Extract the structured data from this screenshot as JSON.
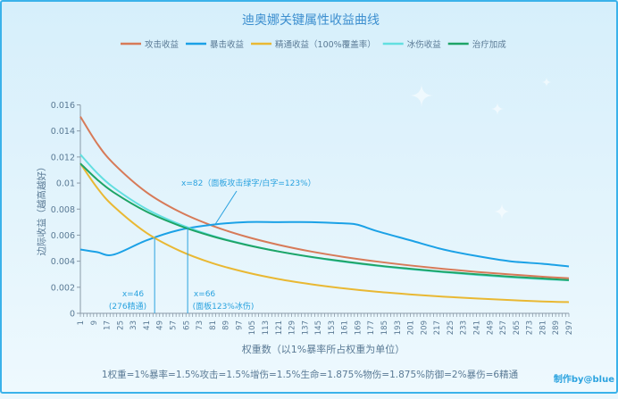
{
  "chart_data": {
    "type": "line",
    "title": "迪奥娜关键属性收益曲线",
    "xlabel": "权重数（以1%暴率所占权重为单位）",
    "ylabel": "边际收益（越高越好）",
    "xlim": [
      1,
      297
    ],
    "ylim": [
      0,
      0.016
    ],
    "yticks": [
      "0",
      "0.002",
      "0.004",
      "0.006",
      "0.008",
      "0.01",
      "0.012",
      "0.014",
      "0.016"
    ],
    "xtick_start": 1,
    "xtick_step": 8,
    "xtick_end": 297,
    "grid": false,
    "legend_position": "top",
    "series": [
      {
        "name": "攻击收益",
        "color": "#d77a58",
        "x": [
          1,
          11,
          21,
          41,
          61,
          81,
          101,
          121,
          141,
          161,
          181,
          201,
          221,
          241,
          261,
          281,
          297
        ],
        "y": [
          0.0151,
          0.01306,
          0.01151,
          0.0093,
          0.0078,
          0.00672,
          0.0059,
          0.00526,
          0.00474,
          0.00432,
          0.00397,
          0.00367,
          0.00341,
          0.00318,
          0.00299,
          0.00281,
          0.00269
        ]
      },
      {
        "name": "暴击收益",
        "color": "#1ba1e6",
        "x": [
          1,
          11,
          21,
          41,
          61,
          81,
          101,
          121,
          141,
          161,
          169,
          181,
          201,
          221,
          241,
          261,
          281,
          297
        ],
        "y": [
          0.0049,
          0.0047,
          0.0045,
          0.0056,
          0.0064,
          0.0068,
          0.007,
          0.007,
          0.007,
          0.0069,
          0.0068,
          0.0063,
          0.0056,
          0.0049,
          0.0044,
          0.004,
          0.0038,
          0.0036
        ]
      },
      {
        "name": "精通收益（100%覆盖率）",
        "color": "#e9b833",
        "x": [
          1,
          11,
          21,
          41,
          61,
          81,
          101,
          121,
          141,
          161,
          181,
          201,
          221,
          241,
          261,
          281,
          297
        ],
        "y": [
          0.0115,
          0.00966,
          0.00823,
          0.00618,
          0.00481,
          0.00385,
          0.00316,
          0.00263,
          0.00223,
          0.00191,
          0.00165,
          0.00145,
          0.00128,
          0.00114,
          0.00102,
          0.00091,
          0.00086
        ]
      },
      {
        "name": "冰伤收益",
        "color": "#62dfe0",
        "x": [
          1,
          11,
          21,
          41,
          61,
          81,
          101,
          121,
          141,
          161,
          181,
          201,
          221,
          241,
          261,
          281,
          297
        ],
        "y": [
          0.01219,
          0.01079,
          0.00967,
          0.00801,
          0.00684,
          0.00596,
          0.00529,
          0.00475,
          0.00431,
          0.00395,
          0.00364,
          0.00338,
          0.00315,
          0.00295,
          0.00277,
          0.00262,
          0.00253
        ]
      },
      {
        "name": "治疗加成",
        "color": "#1ea466",
        "x": [
          1,
          11,
          21,
          41,
          61,
          81,
          101,
          121,
          141,
          161,
          181,
          201,
          221,
          241,
          261,
          281,
          297
        ],
        "y": [
          0.0115,
          0.01029,
          0.0093,
          0.00781,
          0.00673,
          0.00591,
          0.00527,
          0.00475,
          0.00433,
          0.00398,
          0.00367,
          0.00342,
          0.00319,
          0.003,
          0.00282,
          0.00267,
          0.00255
        ]
      }
    ],
    "annotations": [
      {
        "x": 46,
        "y": 0.0058,
        "lines": [
          "x=46",
          "(276精通)"
        ]
      },
      {
        "x": 66,
        "y": 0.0066,
        "lines": [
          "x=66",
          "(面板123%冰伤)"
        ]
      },
      {
        "x": 82,
        "y": 0.0068,
        "lines": [
          "x=82（面板攻击绿字/白字=123%）"
        ]
      }
    ],
    "footnote": "1权重=1%暴率=1.5%攻击=1.5%增伤=1.5%生命=1.875%物伤=1.875%防御=2%暴伤=6精通",
    "credit": "制作by@blue"
  },
  "colors": {
    "title": "#3d8fcf",
    "axis": "#8a9aa8",
    "text": "#5a7a95",
    "annotation": "#2aa2df",
    "frame": "#3ab2ea"
  }
}
